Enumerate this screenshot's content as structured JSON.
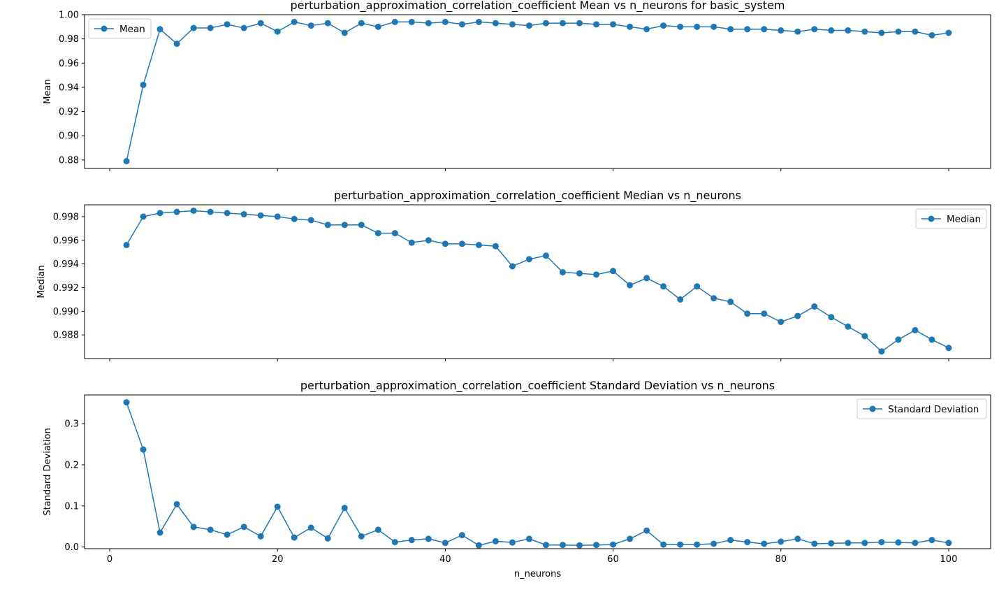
{
  "chart_data": [
    {
      "type": "line",
      "title": "perturbation_approximation_correlation_coefficient Mean vs n_neurons for basic_system",
      "xlabel": "",
      "ylabel": "Mean",
      "xlim": [
        -3,
        105
      ],
      "ylim": [
        0.873,
        1.0
      ],
      "yticks": [
        0.88,
        0.9,
        0.92,
        0.94,
        0.96,
        0.98,
        1.0
      ],
      "ytick_labels": [
        "0.88",
        "0.90",
        "0.92",
        "0.94",
        "0.96",
        "0.98",
        "1.00"
      ],
      "xticks": [
        0,
        20,
        40,
        60,
        80,
        100
      ],
      "xtick_labels": [],
      "grid": false,
      "legend_position": "top-left",
      "color": "#1f77b4",
      "series": [
        {
          "name": "Mean",
          "x": [
            2,
            4,
            6,
            8,
            10,
            12,
            14,
            16,
            18,
            20,
            22,
            24,
            26,
            28,
            30,
            32,
            34,
            36,
            38,
            40,
            42,
            44,
            46,
            48,
            50,
            52,
            54,
            56,
            58,
            60,
            62,
            64,
            66,
            68,
            70,
            72,
            74,
            76,
            78,
            80,
            82,
            84,
            86,
            88,
            90,
            92,
            94,
            96,
            98,
            100
          ],
          "values": [
            0.879,
            0.942,
            0.988,
            0.976,
            0.989,
            0.989,
            0.992,
            0.989,
            0.993,
            0.986,
            0.994,
            0.991,
            0.993,
            0.985,
            0.993,
            0.99,
            0.994,
            0.994,
            0.993,
            0.994,
            0.992,
            0.994,
            0.993,
            0.992,
            0.991,
            0.993,
            0.993,
            0.993,
            0.992,
            0.992,
            0.99,
            0.988,
            0.991,
            0.99,
            0.99,
            0.99,
            0.988,
            0.988,
            0.988,
            0.987,
            0.986,
            0.988,
            0.987,
            0.987,
            0.986,
            0.985,
            0.986,
            0.986,
            0.983,
            0.985
          ]
        }
      ]
    },
    {
      "type": "line",
      "title": "perturbation_approximation_correlation_coefficient Median vs n_neurons",
      "xlabel": "",
      "ylabel": "Median",
      "xlim": [
        -3,
        105
      ],
      "ylim": [
        0.986,
        0.999
      ],
      "yticks": [
        0.988,
        0.99,
        0.992,
        0.994,
        0.996,
        0.998
      ],
      "ytick_labels": [
        "0.988",
        "0.990",
        "0.992",
        "0.994",
        "0.996",
        "0.998"
      ],
      "xticks": [
        0,
        20,
        40,
        60,
        80,
        100
      ],
      "xtick_labels": [],
      "grid": false,
      "legend_position": "top-right",
      "color": "#1f77b4",
      "series": [
        {
          "name": "Median",
          "x": [
            2,
            4,
            6,
            8,
            10,
            12,
            14,
            16,
            18,
            20,
            22,
            24,
            26,
            28,
            30,
            32,
            34,
            36,
            38,
            40,
            42,
            44,
            46,
            48,
            50,
            52,
            54,
            56,
            58,
            60,
            62,
            64,
            66,
            68,
            70,
            72,
            74,
            76,
            78,
            80,
            82,
            84,
            86,
            88,
            90,
            92,
            94,
            96,
            98,
            100
          ],
          "values": [
            0.9956,
            0.998,
            0.9983,
            0.9984,
            0.9985,
            0.9984,
            0.9983,
            0.9982,
            0.9981,
            0.998,
            0.9978,
            0.9977,
            0.9973,
            0.9973,
            0.9973,
            0.9966,
            0.9966,
            0.9958,
            0.996,
            0.9957,
            0.9957,
            0.9956,
            0.9955,
            0.9938,
            0.9944,
            0.9947,
            0.9933,
            0.9932,
            0.9931,
            0.9934,
            0.9922,
            0.9928,
            0.9921,
            0.991,
            0.9921,
            0.9911,
            0.9908,
            0.9898,
            0.9898,
            0.9891,
            0.9896,
            0.9904,
            0.9895,
            0.9887,
            0.9879,
            0.9866,
            0.9876,
            0.9884,
            0.9876,
            0.9869
          ]
        }
      ]
    },
    {
      "type": "line",
      "title": "perturbation_approximation_correlation_coefficient Standard Deviation vs n_neurons",
      "xlabel": "n_neurons",
      "ylabel": "Standard Deviation",
      "xlim": [
        -3,
        105
      ],
      "ylim": [
        -0.004,
        0.37
      ],
      "yticks": [
        0.0,
        0.1,
        0.2,
        0.3
      ],
      "ytick_labels": [
        "0.0",
        "0.1",
        "0.2",
        "0.3"
      ],
      "xticks": [
        0,
        20,
        40,
        60,
        80,
        100
      ],
      "xtick_labels": [
        "0",
        "20",
        "40",
        "60",
        "80",
        "100"
      ],
      "grid": false,
      "legend_position": "top-right",
      "color": "#1f77b4",
      "series": [
        {
          "name": "Standard Deviation",
          "x": [
            2,
            4,
            6,
            8,
            10,
            12,
            14,
            16,
            18,
            20,
            22,
            24,
            26,
            28,
            30,
            32,
            34,
            36,
            38,
            40,
            42,
            44,
            46,
            48,
            50,
            52,
            54,
            56,
            58,
            60,
            62,
            64,
            66,
            68,
            70,
            72,
            74,
            76,
            78,
            80,
            82,
            84,
            86,
            88,
            90,
            92,
            94,
            96,
            98,
            100
          ],
          "values": [
            0.352,
            0.237,
            0.035,
            0.104,
            0.049,
            0.042,
            0.03,
            0.049,
            0.026,
            0.098,
            0.023,
            0.047,
            0.021,
            0.095,
            0.026,
            0.042,
            0.012,
            0.017,
            0.02,
            0.01,
            0.029,
            0.004,
            0.014,
            0.011,
            0.02,
            0.005,
            0.005,
            0.004,
            0.005,
            0.006,
            0.02,
            0.04,
            0.006,
            0.006,
            0.006,
            0.008,
            0.017,
            0.012,
            0.008,
            0.013,
            0.02,
            0.008,
            0.009,
            0.01,
            0.01,
            0.012,
            0.011,
            0.01,
            0.017,
            0.01
          ]
        }
      ]
    }
  ]
}
